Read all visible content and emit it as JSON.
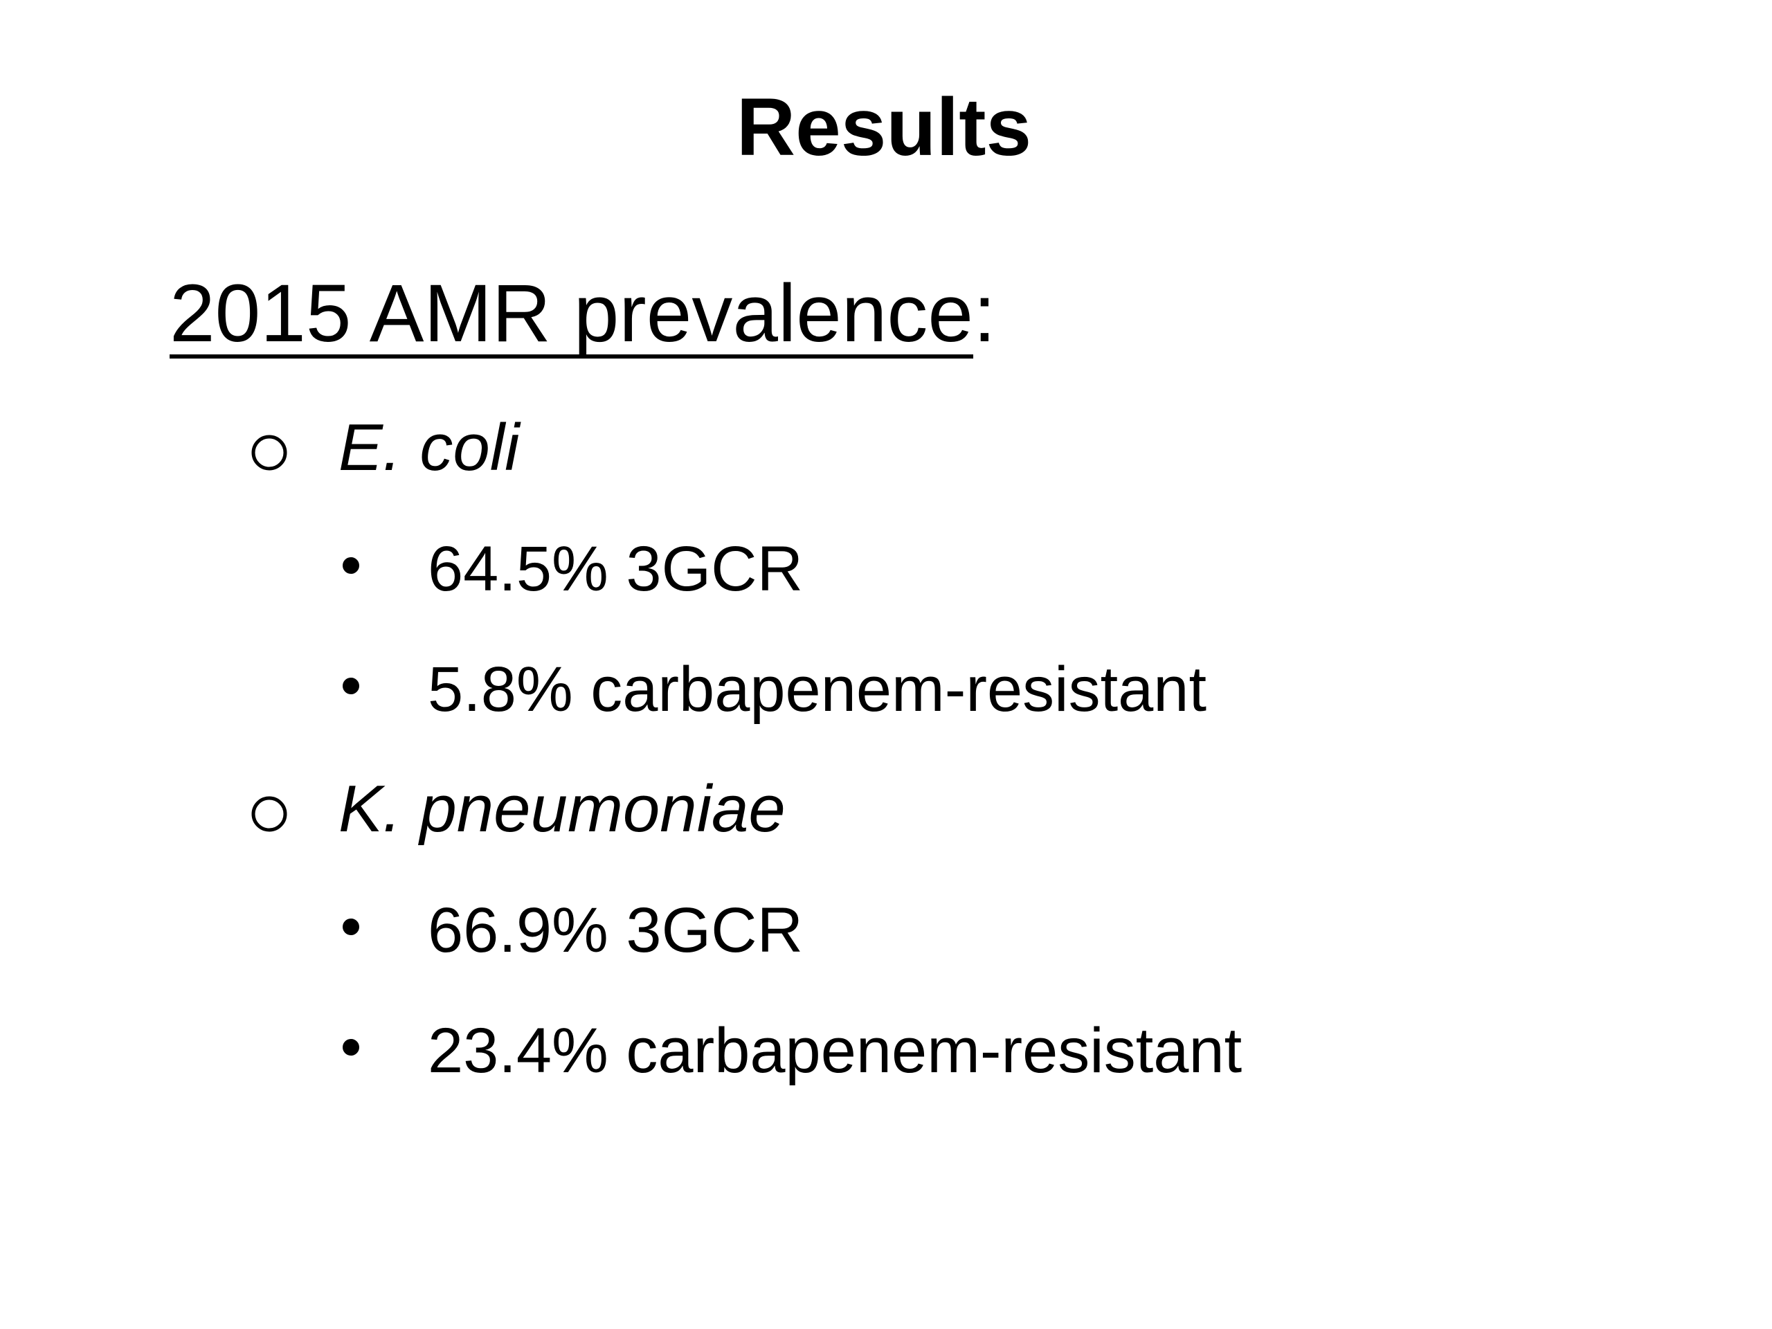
{
  "slide": {
    "title": "Results",
    "heading": {
      "text": "2015 AMR prevalence",
      "suffix": ":"
    },
    "organisms": [
      {
        "name": "E. coli",
        "points": [
          "64.5% 3GCR",
          "5.8% carbapenem-resistant"
        ]
      },
      {
        "name": "K. pneumoniae",
        "points": [
          "66.9% 3GCR",
          "23.4% carbapenem-resistant"
        ]
      }
    ]
  }
}
